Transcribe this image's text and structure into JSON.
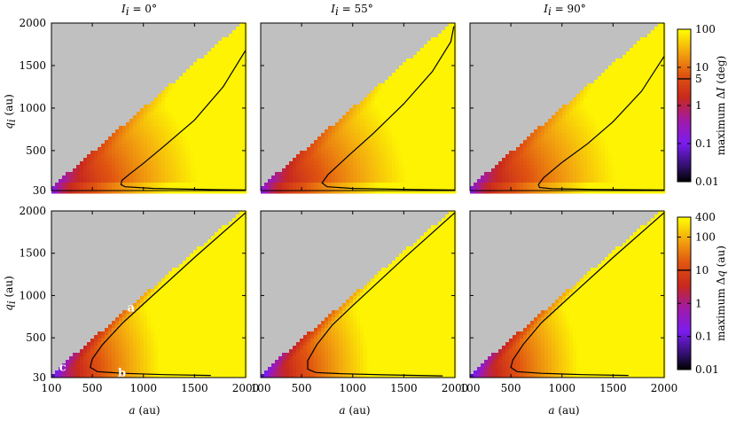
{
  "figure": {
    "column_titles": [
      {
        "symbol": "I",
        "sub": "i",
        "value": " = 0°"
      },
      {
        "symbol": "I",
        "sub": "i",
        "value": " = 55°"
      },
      {
        "symbol": "I",
        "sub": "i",
        "value": " = 90°"
      }
    ],
    "xlabel": {
      "symbol": "a",
      "unit": " (au)"
    },
    "ylabel": {
      "symbol": "q",
      "sub": "i",
      "unit": " (au)"
    },
    "colorbars": [
      {
        "label_prefix": "maximum Δ",
        "label_symbol": "I",
        "label_unit": " (deg)",
        "ticks": [
          "100",
          "10",
          "5",
          "1",
          "0.1",
          "0.01"
        ]
      },
      {
        "label_prefix": "maximum Δ",
        "label_symbol": "q",
        "label_unit": " (au)",
        "ticks": [
          "400",
          "100",
          "10",
          "1",
          "0.1",
          "0.01"
        ]
      }
    ],
    "annotations": [
      "a",
      "b",
      "c"
    ],
    "colors": {
      "background": "#c0c0c0",
      "contour": "#000000",
      "low": "#000000",
      "mid_low": "#7a1cf0",
      "mid": "#c8281e",
      "high": "#ffff00"
    }
  },
  "chart_data": [
    {
      "type": "heatmap",
      "row": "top",
      "column": 1,
      "title": "I_i = 0°",
      "xlabel": "",
      "ylabel": "q_i (au)",
      "xlim": [
        100,
        2000
      ],
      "ylim": [
        30,
        2000
      ],
      "xticks": [],
      "yticks": [
        "30",
        "500",
        "1000",
        "1500",
        "2000"
      ],
      "colorbar": "maximum ΔI (deg)",
      "color_scale": "log",
      "color_range": [
        0.01,
        100
      ],
      "contour": {
        "level": 5,
        "points": [
          [
            2000,
            1680
          ],
          [
            1780,
            1250
          ],
          [
            1500,
            860
          ],
          [
            1200,
            550
          ],
          [
            1000,
            350
          ],
          [
            860,
            220
          ],
          [
            790,
            150
          ],
          [
            780,
            100
          ],
          [
            820,
            75
          ],
          [
            1100,
            55
          ],
          [
            1700,
            40
          ],
          [
            2000,
            36
          ]
        ]
      }
    },
    {
      "type": "heatmap",
      "row": "top",
      "column": 2,
      "title": "I_i = 55°",
      "xlabel": "",
      "ylabel": "",
      "xlim": [
        100,
        2000
      ],
      "ylim": [
        30,
        2000
      ],
      "colorbar": "maximum ΔI (deg)",
      "color_scale": "log",
      "color_range": [
        0.01,
        100
      ],
      "contour": {
        "level": 5,
        "points": [
          [
            1990,
            1960
          ],
          [
            1960,
            1780
          ],
          [
            1780,
            1430
          ],
          [
            1500,
            1050
          ],
          [
            1200,
            700
          ],
          [
            950,
            430
          ],
          [
            760,
            220
          ],
          [
            700,
            120
          ],
          [
            750,
            75
          ],
          [
            1000,
            55
          ],
          [
            1600,
            42
          ],
          [
            2000,
            36
          ]
        ]
      }
    },
    {
      "type": "heatmap",
      "row": "top",
      "column": 3,
      "title": "I_i = 90°",
      "xlabel": "",
      "ylabel": "",
      "xlim": [
        100,
        2000
      ],
      "ylim": [
        30,
        2000
      ],
      "colorbar": "maximum ΔI (deg)",
      "color_scale": "log",
      "color_range": [
        0.01,
        100
      ],
      "contour": {
        "level": 5,
        "points": [
          [
            2000,
            1610
          ],
          [
            1780,
            1200
          ],
          [
            1500,
            840
          ],
          [
            1250,
            580
          ],
          [
            1000,
            360
          ],
          [
            820,
            180
          ],
          [
            770,
            100
          ],
          [
            780,
            65
          ],
          [
            900,
            52
          ],
          [
            1300,
            44
          ],
          [
            2000,
            37
          ]
        ]
      }
    },
    {
      "type": "heatmap",
      "row": "bottom",
      "column": 1,
      "title": "",
      "xlabel": "a (au)",
      "ylabel": "q_i (au)",
      "xlim": [
        100,
        2000
      ],
      "ylim": [
        30,
        2000
      ],
      "xticks": [
        "100",
        "500",
        "1000",
        "1500",
        "2000"
      ],
      "yticks": [
        "30",
        "500",
        "1000",
        "1500",
        "2000"
      ],
      "colorbar": "maximum Δq (au)",
      "color_scale": "log",
      "color_range": [
        0.01,
        400
      ],
      "contour": {
        "level": 10,
        "points": [
          [
            2000,
            1980
          ],
          [
            1500,
            1450
          ],
          [
            1000,
            900
          ],
          [
            800,
            680
          ],
          [
            600,
            420
          ],
          [
            500,
            250
          ],
          [
            480,
            150
          ],
          [
            550,
            100
          ],
          [
            800,
            80
          ],
          [
            1200,
            65
          ],
          [
            1660,
            55
          ]
        ]
      },
      "annotations": [
        {
          "text": "a",
          "x": 880,
          "y": 850
        },
        {
          "text": "b",
          "x": 790,
          "y": 80
        },
        {
          "text": "c",
          "x": 210,
          "y": 150
        }
      ]
    },
    {
      "type": "heatmap",
      "row": "bottom",
      "column": 2,
      "title": "",
      "xlabel": "a (au)",
      "ylabel": "",
      "xlim": [
        100,
        2000
      ],
      "ylim": [
        30,
        2000
      ],
      "xticks": [
        "100",
        "500",
        "1000",
        "1500",
        "2000"
      ],
      "colorbar": "maximum Δq (au)",
      "color_scale": "log",
      "color_range": [
        0.01,
        400
      ],
      "contour": {
        "level": 10,
        "points": [
          [
            2000,
            1980
          ],
          [
            1500,
            1440
          ],
          [
            1000,
            880
          ],
          [
            800,
            650
          ],
          [
            650,
            420
          ],
          [
            560,
            230
          ],
          [
            560,
            130
          ],
          [
            640,
            90
          ],
          [
            900,
            75
          ],
          [
            1300,
            62
          ],
          [
            1880,
            50
          ]
        ]
      }
    },
    {
      "type": "heatmap",
      "row": "bottom",
      "column": 3,
      "title": "",
      "xlabel": "a (au)",
      "ylabel": "",
      "xlim": [
        100,
        2000
      ],
      "ylim": [
        30,
        2000
      ],
      "xticks": [
        "100",
        "500",
        "1000",
        "1500",
        "2000"
      ],
      "colorbar": "maximum Δq (au)",
      "color_scale": "log",
      "color_range": [
        0.01,
        400
      ],
      "contour": {
        "level": 10,
        "points": [
          [
            2000,
            1980
          ],
          [
            1500,
            1450
          ],
          [
            1000,
            900
          ],
          [
            800,
            680
          ],
          [
            620,
            420
          ],
          [
            520,
            240
          ],
          [
            500,
            150
          ],
          [
            560,
            100
          ],
          [
            800,
            80
          ],
          [
            1200,
            65
          ],
          [
            1650,
            55
          ]
        ]
      }
    }
  ]
}
